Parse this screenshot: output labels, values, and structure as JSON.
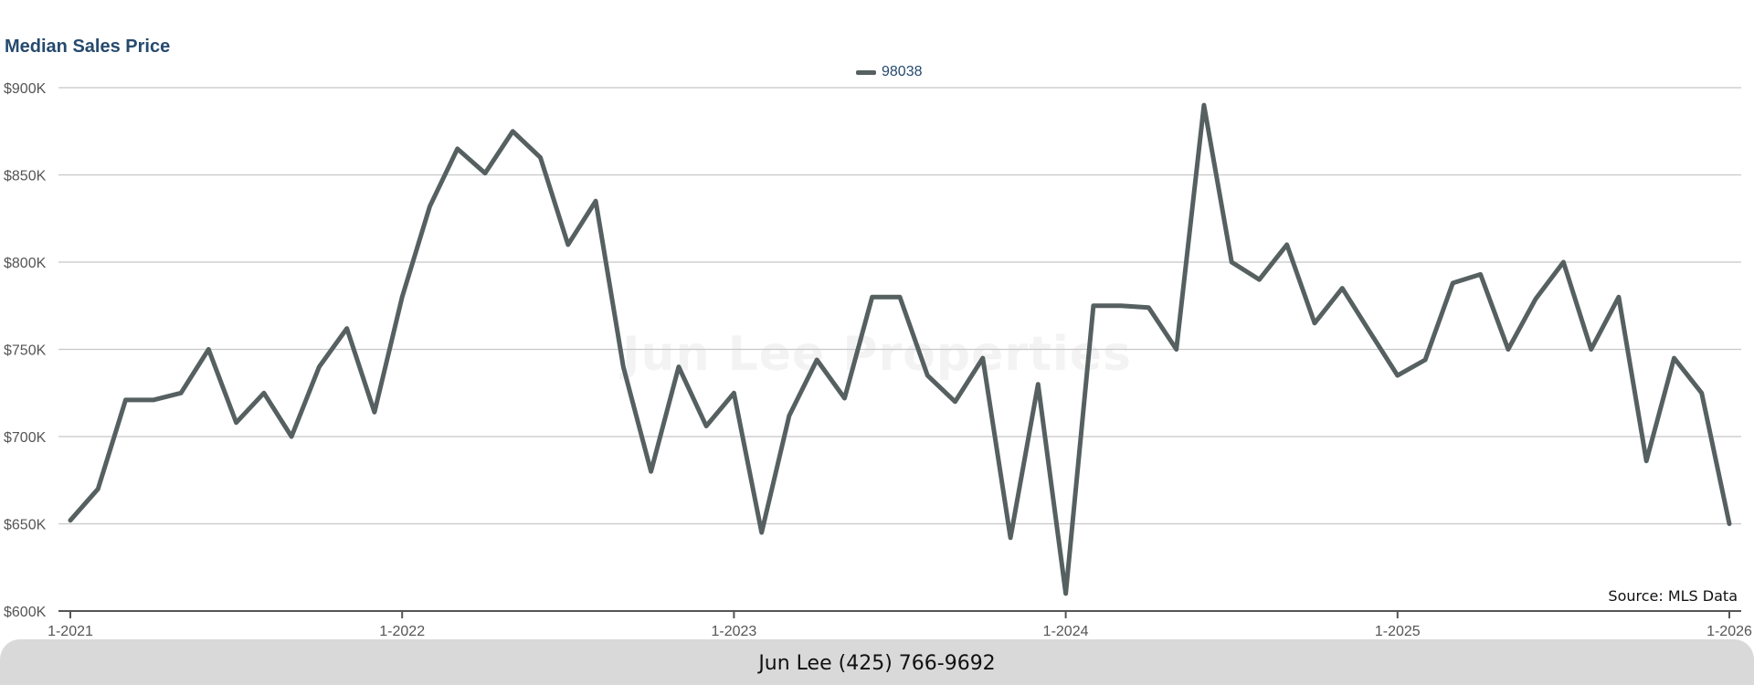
{
  "chart_data": {
    "type": "line",
    "title": "Median Sales Price",
    "xlabel": "",
    "ylabel": "",
    "ylim": [
      600000,
      900000
    ],
    "y_ticks": [
      600000,
      650000,
      700000,
      750000,
      800000,
      850000,
      900000
    ],
    "y_tick_labels": [
      "$600K",
      "$650K",
      "$700K",
      "$750K",
      "$800K",
      "$850K",
      "$900K"
    ],
    "x_tick_labels": [
      "1-2021",
      "1-2022",
      "1-2023",
      "1-2024",
      "1-2025",
      "1-2026"
    ],
    "grid": true,
    "legend_position": "top-center",
    "series": [
      {
        "name": "98038",
        "color": "#566060",
        "x": [
          "2021-01",
          "2021-02",
          "2021-03",
          "2021-04",
          "2021-05",
          "2021-06",
          "2021-07",
          "2021-08",
          "2021-09",
          "2021-10",
          "2021-11",
          "2021-12",
          "2022-01",
          "2022-02",
          "2022-03",
          "2022-04",
          "2022-05",
          "2022-06",
          "2022-07",
          "2022-08",
          "2022-09",
          "2022-10",
          "2022-11",
          "2022-12",
          "2023-01",
          "2023-02",
          "2023-03",
          "2023-04",
          "2023-05",
          "2023-06",
          "2023-07",
          "2023-08",
          "2023-09",
          "2023-10",
          "2023-11",
          "2023-12",
          "2024-01",
          "2024-02",
          "2024-03",
          "2024-04",
          "2024-05",
          "2024-06",
          "2024-07",
          "2024-08",
          "2024-09",
          "2024-10",
          "2024-11",
          "2024-12",
          "2025-01",
          "2025-02",
          "2025-03",
          "2025-04",
          "2025-05",
          "2025-06",
          "2025-07",
          "2025-08",
          "2025-09",
          "2025-10",
          "2025-11",
          "2025-12",
          "2026-01"
        ],
        "values": [
          652000,
          670000,
          721000,
          721000,
          725000,
          750000,
          708000,
          725000,
          700000,
          740000,
          762000,
          714000,
          780000,
          832000,
          865000,
          851000,
          875000,
          860000,
          810000,
          835000,
          740000,
          680000,
          740000,
          706000,
          725000,
          645000,
          712000,
          744000,
          722000,
          780000,
          780000,
          735000,
          720000,
          745000,
          642000,
          730000,
          610000,
          775000,
          775000,
          774000,
          750000,
          890000,
          800000,
          790000,
          810000,
          765000,
          785000,
          760000,
          735000,
          744000,
          788000,
          793000,
          750000,
          779000,
          800000,
          750000,
          780000,
          686000,
          745000,
          725000,
          650000
        ]
      }
    ]
  },
  "watermark": "Jun Lee Properties",
  "source": "Source: MLS Data",
  "footer": {
    "text": "Jun Lee (425) 766-9692"
  }
}
